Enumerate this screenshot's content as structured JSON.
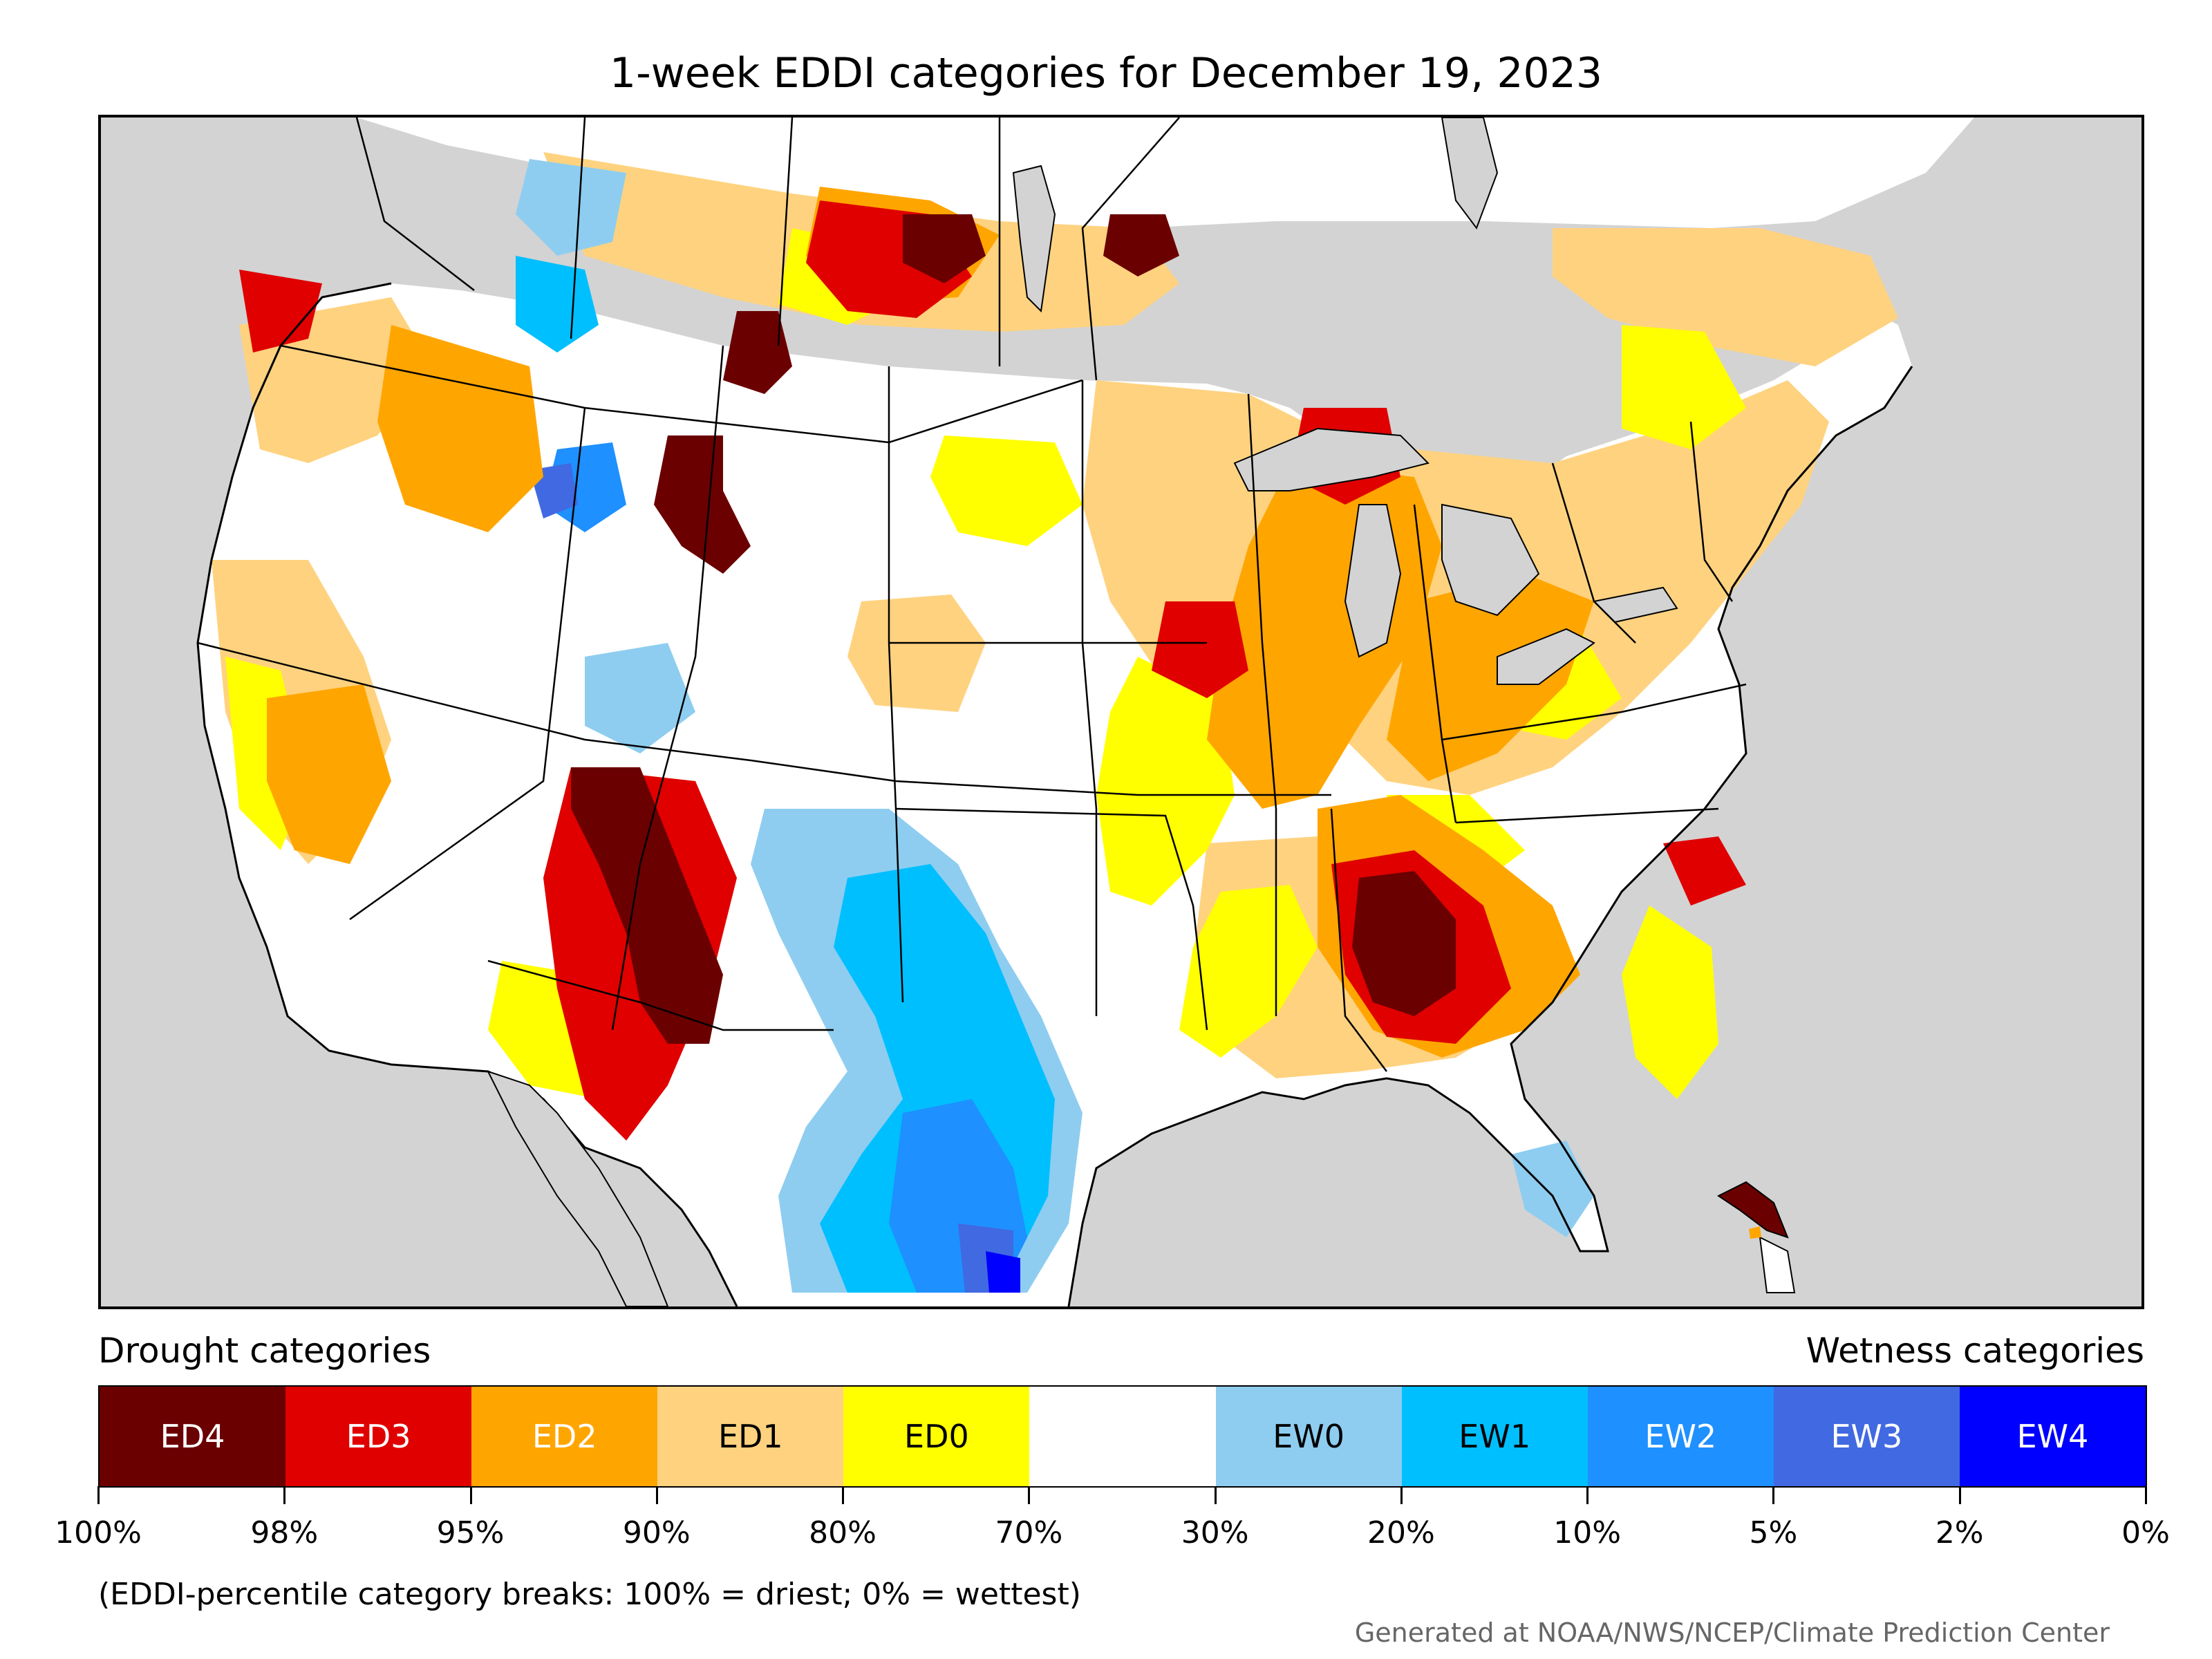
{
  "title": "1-week EDDI categories for December 19, 2023",
  "legend": {
    "drought_heading": "Drought categories",
    "wetness_heading": "Wetness categories",
    "categories": [
      {
        "label": "ED4",
        "color": "#6b0000",
        "text_color": "#ffffff"
      },
      {
        "label": "ED3",
        "color": "#e00000",
        "text_color": "#ffffff"
      },
      {
        "label": "ED2",
        "color": "#ffa500",
        "text_color": "#ffffff"
      },
      {
        "label": "ED1",
        "color": "#ffd27f",
        "text_color": "#000000"
      },
      {
        "label": "ED0",
        "color": "#ffff00",
        "text_color": "#000000"
      },
      {
        "label": "",
        "color": "#ffffff",
        "text_color": "#000000"
      },
      {
        "label": "EW0",
        "color": "#8ecdf0",
        "text_color": "#000000"
      },
      {
        "label": "EW1",
        "color": "#00bfff",
        "text_color": "#000000"
      },
      {
        "label": "EW2",
        "color": "#1e90ff",
        "text_color": "#ffffff"
      },
      {
        "label": "EW3",
        "color": "#4169e1",
        "text_color": "#ffffff"
      },
      {
        "label": "EW4",
        "color": "#0000ff",
        "text_color": "#ffffff"
      }
    ],
    "tick_labels": [
      "100%",
      "98%",
      "95%",
      "90%",
      "80%",
      "70%",
      "30%",
      "20%",
      "10%",
      "5%",
      "2%",
      "0%"
    ]
  },
  "note": "(EDDI-percentile category breaks: 100% = driest; 0% = wettest)",
  "credit": "Generated at NOAA/NWS/NCEP/Climate Prediction Center",
  "map": {
    "land_color": "#d3d3d3",
    "ocean_color": "#d3d3d3"
  }
}
